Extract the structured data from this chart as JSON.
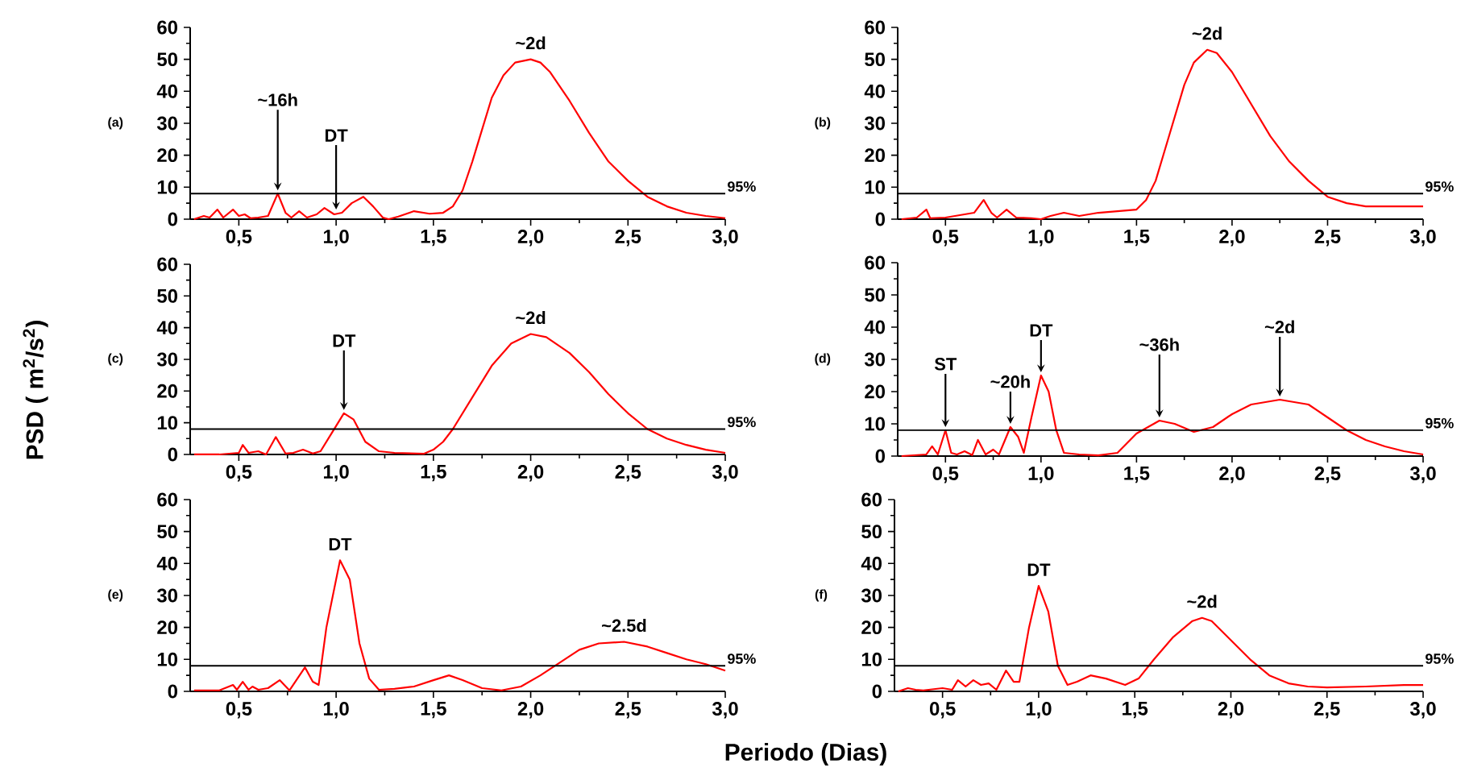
{
  "chart_data": [
    {
      "type": "line",
      "color": "#ff0000",
      "xlim": [
        0.25,
        3.0
      ],
      "ylim": [
        0,
        60
      ],
      "yticks": [
        0,
        10,
        20,
        30,
        40,
        50,
        60
      ],
      "xticks": [
        {
          "value": 0.5,
          "label": "0,5"
        },
        {
          "value": 1.0,
          "label": "1,0"
        },
        {
          "value": 1.5,
          "label": "1,5"
        },
        {
          "value": 2.0,
          "label": "2,0"
        },
        {
          "value": 2.5,
          "label": "2,5"
        },
        {
          "value": 3.0,
          "label": "3,0"
        }
      ],
      "x": [
        0.27,
        0.32,
        0.35,
        0.39,
        0.42,
        0.47,
        0.5,
        0.53,
        0.56,
        0.6,
        0.65,
        0.7,
        0.74,
        0.77,
        0.81,
        0.85,
        0.9,
        0.94,
        0.99,
        1.03,
        1.08,
        1.14,
        1.19,
        1.24,
        1.27,
        1.32,
        1.4,
        1.48,
        1.55,
        1.6,
        1.65,
        1.7,
        1.75,
        1.8,
        1.86,
        1.92,
        2.0,
        2.05,
        2.1,
        2.2,
        2.3,
        2.4,
        2.5,
        2.6,
        2.7,
        2.8,
        2.9,
        3.0
      ],
      "values": [
        0,
        1,
        0.5,
        3,
        0.5,
        3,
        1,
        1.5,
        0.3,
        0.5,
        1,
        8,
        2,
        0.5,
        2.5,
        0.5,
        1.5,
        3.5,
        1.5,
        2,
        5,
        7,
        4,
        0.5,
        0,
        0.8,
        2.5,
        1.7,
        2,
        4,
        9,
        18,
        28,
        38,
        45,
        49,
        50,
        49,
        46,
        37,
        27,
        18,
        12,
        7,
        4,
        2,
        1,
        0.3
      ],
      "ref_lines": [
        {
          "axis": "y",
          "value": 8
        }
      ],
      "annotations": [
        "(a)",
        "95%",
        {
          "text": "~16h",
          "x": 0.7,
          "y": 8
        },
        {
          "text": "DT",
          "x": 1.0,
          "y": 2
        },
        {
          "text": "~2d",
          "x": 2.0,
          "y": 50
        }
      ]
    },
    {
      "type": "line",
      "color": "#ff0000",
      "xlim": [
        0.25,
        3.0
      ],
      "ylim": [
        0,
        60
      ],
      "yticks": [
        0,
        10,
        20,
        30,
        40,
        50,
        60
      ],
      "xticks": [
        {
          "value": 0.5,
          "label": "0,5"
        },
        {
          "value": 1.0,
          "label": "1,0"
        },
        {
          "value": 1.5,
          "label": "1,5"
        },
        {
          "value": 2.0,
          "label": "2,0"
        },
        {
          "value": 2.5,
          "label": "2,5"
        },
        {
          "value": 3.0,
          "label": "3,0"
        }
      ],
      "x": [
        0.27,
        0.35,
        0.4,
        0.42,
        0.5,
        0.55,
        0.6,
        0.65,
        0.7,
        0.74,
        0.77,
        0.82,
        0.87,
        0.95,
        1.0,
        1.05,
        1.12,
        1.2,
        1.3,
        1.4,
        1.5,
        1.55,
        1.6,
        1.65,
        1.7,
        1.75,
        1.8,
        1.87,
        1.92,
        2.0,
        2.1,
        2.2,
        2.3,
        2.4,
        2.5,
        2.6,
        2.7,
        2.8,
        2.9,
        3.0
      ],
      "values": [
        0,
        0.5,
        3,
        0.3,
        0.5,
        1,
        1.5,
        2,
        6,
        2,
        0.5,
        3,
        0.5,
        0.3,
        0,
        1,
        2,
        1,
        2,
        2.5,
        3,
        6,
        12,
        22,
        32,
        42,
        49,
        53,
        52,
        46,
        36,
        26,
        18,
        12,
        7,
        5,
        4,
        4,
        4,
        4
      ],
      "ref_lines": [
        {
          "axis": "y",
          "value": 8
        }
      ],
      "annotations": [
        "(b)",
        "95%",
        {
          "text": "~2d",
          "x": 1.87,
          "y": 53
        }
      ]
    },
    {
      "type": "line",
      "color": "#ff0000",
      "xlim": [
        0.25,
        3.0
      ],
      "ylim": [
        0,
        60
      ],
      "yticks": [
        0,
        10,
        20,
        30,
        40,
        50,
        60
      ],
      "xticks": [
        {
          "value": 0.5,
          "label": "0,5"
        },
        {
          "value": 1.0,
          "label": "1,0"
        },
        {
          "value": 1.5,
          "label": "1,5"
        },
        {
          "value": 2.0,
          "label": "2,0"
        },
        {
          "value": 2.5,
          "label": "2,5"
        },
        {
          "value": 3.0,
          "label": "3,0"
        }
      ],
      "ylabel": "PSD ( m$^{2}$/s$^{2}$)",
      "x": [
        0.27,
        0.4,
        0.5,
        0.52,
        0.55,
        0.6,
        0.64,
        0.69,
        0.74,
        0.78,
        0.83,
        0.88,
        0.92,
        0.97,
        1.04,
        1.09,
        1.15,
        1.22,
        1.3,
        1.45,
        1.5,
        1.55,
        1.6,
        1.7,
        1.8,
        1.9,
        2.0,
        2.08,
        2.2,
        2.3,
        2.4,
        2.5,
        2.6,
        2.7,
        2.8,
        2.9,
        3.0
      ],
      "values": [
        0,
        0,
        0.5,
        3,
        0.5,
        1,
        0,
        5.5,
        0.3,
        0.5,
        1.5,
        0.3,
        1,
        6,
        13,
        11,
        4,
        1,
        0.5,
        0.2,
        1.5,
        4,
        8,
        18,
        28,
        35,
        38,
        37,
        32,
        26,
        19,
        13,
        8,
        5,
        3,
        1.5,
        0.5
      ],
      "ref_lines": [
        {
          "axis": "y",
          "value": 8
        }
      ],
      "annotations": [
        "(c)",
        "95%",
        {
          "text": "DT",
          "x": 1.04,
          "y": 13
        },
        {
          "text": "~2d",
          "x": 2.0,
          "y": 38
        }
      ]
    },
    {
      "type": "line",
      "color": "#ff0000",
      "xlim": [
        0.25,
        3.0
      ],
      "ylim": [
        0,
        60
      ],
      "yticks": [
        0,
        10,
        20,
        30,
        40,
        50,
        60
      ],
      "xticks": [
        {
          "value": 0.5,
          "label": "0,5"
        },
        {
          "value": 1.0,
          "label": "1,0"
        },
        {
          "value": 1.5,
          "label": "1,5"
        },
        {
          "value": 2.0,
          "label": "2,0"
        },
        {
          "value": 2.5,
          "label": "2,5"
        },
        {
          "value": 3.0,
          "label": "3,0"
        }
      ],
      "x": [
        0.27,
        0.4,
        0.43,
        0.46,
        0.5,
        0.53,
        0.56,
        0.6,
        0.64,
        0.67,
        0.71,
        0.75,
        0.78,
        0.84,
        0.88,
        0.91,
        0.95,
        1.0,
        1.04,
        1.08,
        1.12,
        1.2,
        1.3,
        1.4,
        1.5,
        1.62,
        1.7,
        1.8,
        1.9,
        2.0,
        2.1,
        2.25,
        2.4,
        2.5,
        2.6,
        2.7,
        2.8,
        2.9,
        3.0
      ],
      "values": [
        0,
        0.5,
        3,
        0.5,
        8,
        1,
        0.5,
        1.5,
        0.3,
        5,
        0.5,
        2,
        0.5,
        9,
        6,
        1,
        12,
        25,
        20,
        8,
        1,
        0.5,
        0.2,
        1,
        7,
        11,
        10,
        7.5,
        9,
        13,
        16,
        17.5,
        16,
        12,
        8,
        5,
        3,
        1.5,
        0.5
      ],
      "ref_lines": [
        {
          "axis": "y",
          "value": 8
        }
      ],
      "annotations": [
        "(d)",
        "95%",
        {
          "text": "ST",
          "x": 0.5,
          "y": 8
        },
        {
          "text": "~20h",
          "x": 0.84,
          "y": 9
        },
        {
          "text": "DT",
          "x": 1.0,
          "y": 25
        },
        {
          "text": "~36h",
          "x": 1.62,
          "y": 11
        },
        {
          "text": "~2d",
          "x": 2.25,
          "y": 17.5
        }
      ]
    },
    {
      "type": "line",
      "color": "#ff0000",
      "xlim": [
        0.25,
        3.0
      ],
      "ylim": [
        0,
        60
      ],
      "yticks": [
        0,
        10,
        20,
        30,
        40,
        50,
        60
      ],
      "xticks": [
        {
          "value": 0.5,
          "label": "0,5"
        },
        {
          "value": 1.0,
          "label": "1,0"
        },
        {
          "value": 1.5,
          "label": "1,5"
        },
        {
          "value": 2.0,
          "label": "2,0"
        },
        {
          "value": 2.5,
          "label": "2,5"
        },
        {
          "value": 3.0,
          "label": "3,0"
        }
      ],
      "xlabel": "Periodo (Dias)",
      "x": [
        0.27,
        0.4,
        0.47,
        0.49,
        0.52,
        0.55,
        0.57,
        0.6,
        0.65,
        0.71,
        0.76,
        0.84,
        0.88,
        0.91,
        0.95,
        1.02,
        1.07,
        1.12,
        1.17,
        1.22,
        1.3,
        1.4,
        1.5,
        1.58,
        1.65,
        1.75,
        1.85,
        1.95,
        2.05,
        2.15,
        2.25,
        2.35,
        2.48,
        2.6,
        2.7,
        2.8,
        2.9,
        3.0
      ],
      "values": [
        0.3,
        0.3,
        2,
        0.5,
        3,
        0.5,
        1.5,
        0.5,
        1,
        3.5,
        0.3,
        7.5,
        3,
        2,
        20,
        41,
        35,
        15,
        4,
        0.5,
        0.8,
        1.5,
        3.5,
        5,
        3.5,
        1,
        0.3,
        1.5,
        5,
        9,
        13,
        15,
        15.5,
        14,
        12,
        10,
        8.5,
        6.5
      ],
      "ref_lines": [
        {
          "axis": "y",
          "value": 8
        }
      ],
      "annotations": [
        "(e)",
        "95%",
        {
          "text": "DT",
          "x": 1.02,
          "y": 41
        },
        {
          "text": "~2.5d",
          "x": 2.48,
          "y": 15.5
        }
      ]
    },
    {
      "type": "line",
      "color": "#ff0000",
      "xlim": [
        0.25,
        3.0
      ],
      "ylim": [
        0,
        60
      ],
      "yticks": [
        0,
        10,
        20,
        30,
        40,
        50,
        60
      ],
      "xticks": [
        {
          "value": 0.5,
          "label": "0,5"
        },
        {
          "value": 1.0,
          "label": "1,0"
        },
        {
          "value": 1.5,
          "label": "1,5"
        },
        {
          "value": 2.0,
          "label": "2,0"
        },
        {
          "value": 2.5,
          "label": "2,5"
        },
        {
          "value": 3.0,
          "label": "3,0"
        }
      ],
      "x": [
        0.27,
        0.32,
        0.36,
        0.4,
        0.5,
        0.55,
        0.58,
        0.62,
        0.66,
        0.7,
        0.74,
        0.78,
        0.83,
        0.87,
        0.9,
        0.95,
        1.0,
        1.05,
        1.1,
        1.15,
        1.2,
        1.27,
        1.35,
        1.45,
        1.52,
        1.6,
        1.7,
        1.8,
        1.85,
        1.9,
        2.0,
        2.1,
        2.2,
        2.3,
        2.4,
        2.5,
        2.7,
        2.9,
        3.0
      ],
      "values": [
        0,
        1,
        0.5,
        0.3,
        1,
        0.5,
        3.5,
        1.5,
        3.5,
        2,
        2.5,
        0.5,
        6.5,
        3,
        3,
        20,
        33,
        25,
        8,
        2,
        3,
        5,
        4,
        2,
        4,
        10,
        17,
        22,
        23,
        22,
        16,
        10,
        5,
        2.5,
        1.5,
        1.2,
        1.5,
        2,
        2
      ],
      "ref_lines": [
        {
          "axis": "y",
          "value": 8
        }
      ],
      "annotations": [
        "(f)",
        "95%",
        {
          "text": "DT",
          "x": 1.0,
          "y": 33
        },
        {
          "text": "~2d",
          "x": 1.85,
          "y": 23
        }
      ]
    }
  ]
}
